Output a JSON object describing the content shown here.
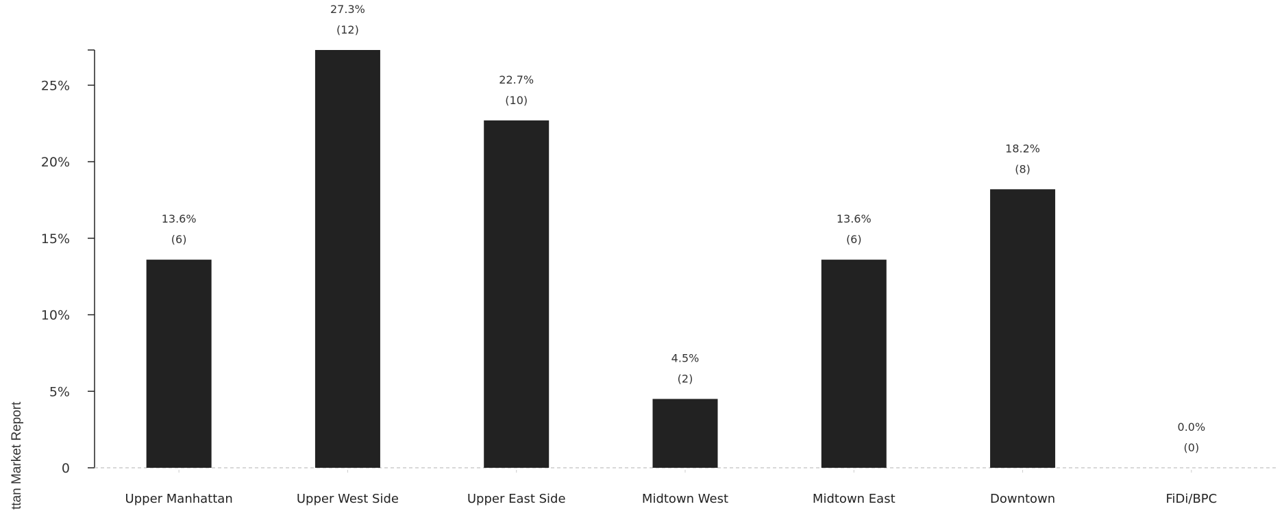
{
  "side_label": "ttan Market Report",
  "colors": {
    "bar": "#222222",
    "axis": "#222222",
    "baseline": "#cccccc",
    "text": "#333333"
  },
  "chart_data": {
    "type": "bar",
    "categories": [
      "Upper Manhattan",
      "Upper West Side",
      "Upper East Side",
      "Midtown West",
      "Midtown East",
      "Downtown",
      "FiDi/BPC"
    ],
    "values": [
      13.6,
      27.3,
      22.7,
      4.5,
      13.6,
      18.2,
      0.0
    ],
    "counts": [
      6,
      12,
      10,
      2,
      6,
      8,
      0
    ],
    "value_labels": [
      "13.6%",
      "27.3%",
      "22.7%",
      "4.5%",
      "13.6%",
      "18.2%",
      "0.0%"
    ],
    "count_labels": [
      "(6)",
      "(12)",
      "(10)",
      "(2)",
      "(6)",
      "(8)",
      "(0)"
    ],
    "yticks": [
      0,
      5,
      10,
      15,
      20,
      25
    ],
    "ytick_labels": [
      "0",
      "5%",
      "10%",
      "15%",
      "20%",
      "25%"
    ],
    "ylim": [
      0,
      27.3
    ],
    "title": "",
    "xlabel": "",
    "ylabel": "",
    "grid": false,
    "legend": "none"
  }
}
